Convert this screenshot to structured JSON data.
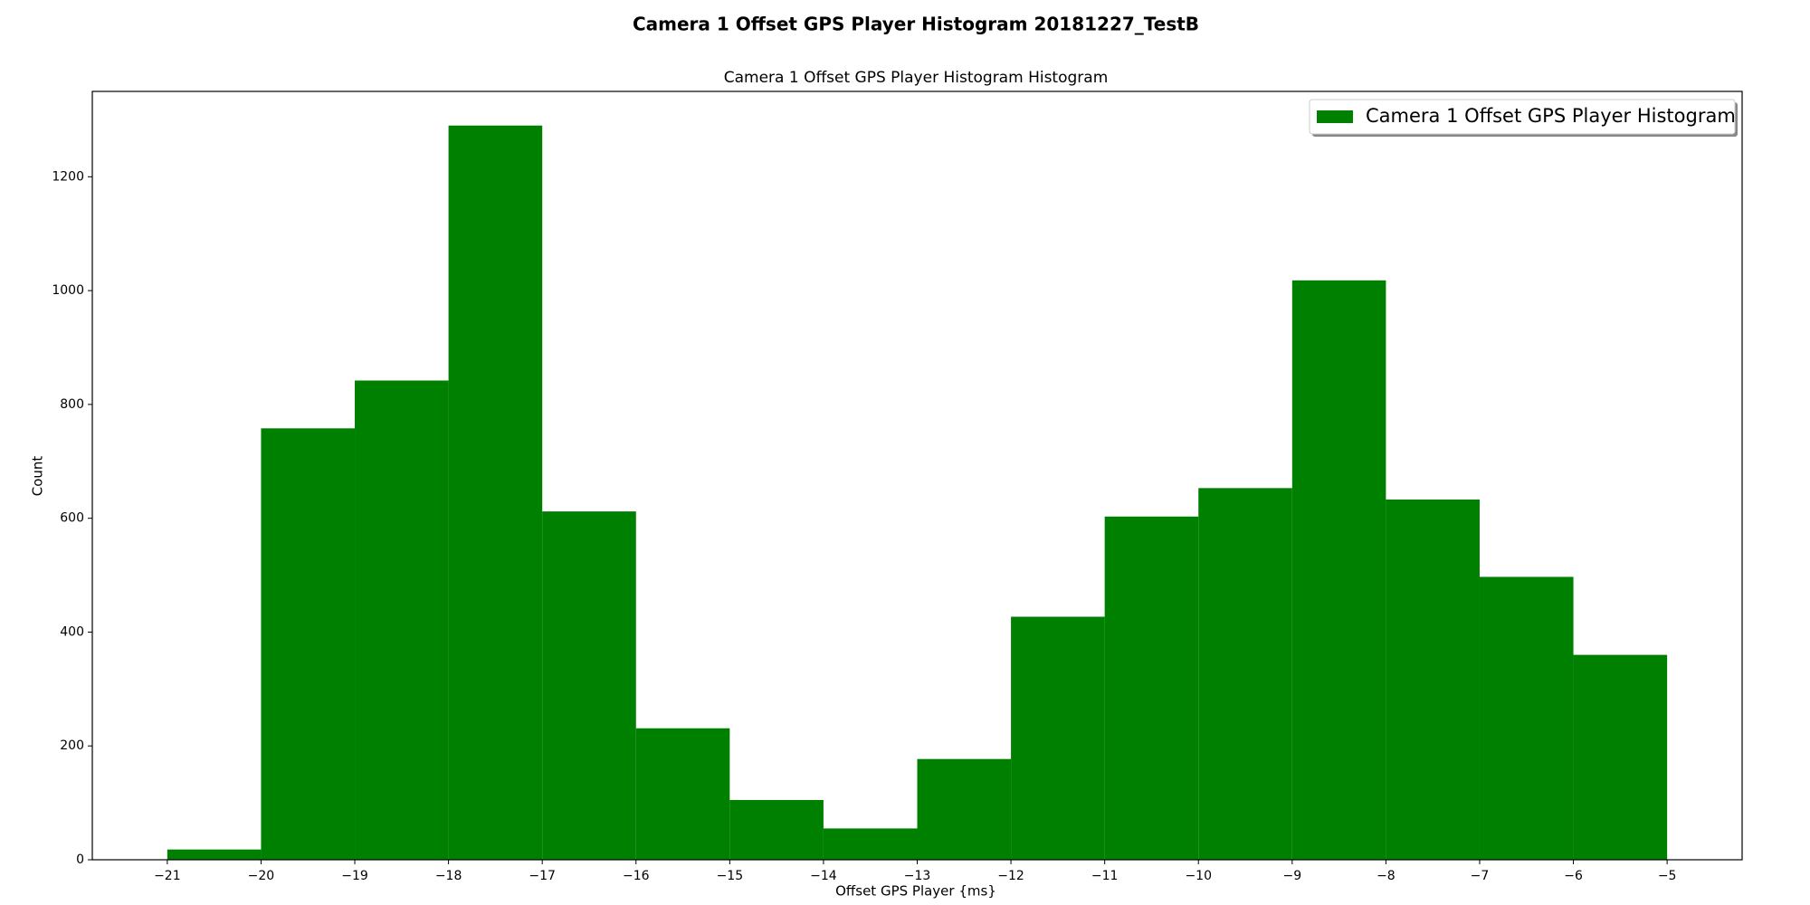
{
  "chart_data": {
    "type": "histogram",
    "title": "Camera 1 Offset GPS Player Histogram 20181227_TestB",
    "subtitle": "Camera 1 Offset GPS Player Histogram Histogram",
    "x_label": "Offset GPS Player {ms}",
    "y_label": "Count",
    "bins": [
      -21,
      -20,
      -19,
      -18,
      -17,
      -16,
      -15,
      -14,
      -13,
      -12,
      -11,
      -10,
      -9,
      -8,
      -7,
      -6,
      -5
    ],
    "series": [
      {
        "name": "Camera 1 Offset GPS Player Histogram",
        "color": "#008000",
        "values": [
          18,
          758,
          842,
          1290,
          612,
          231,
          105,
          55,
          177,
          427,
          603,
          653,
          1018,
          633,
          497,
          360
        ]
      }
    ],
    "xlim": [
      -21.8,
      -4.2
    ],
    "ylim": [
      0,
      1350
    ],
    "xticks": [
      {
        "value": -21,
        "label": "−21"
      },
      {
        "value": -20,
        "label": "−20"
      },
      {
        "value": -19,
        "label": "−19"
      },
      {
        "value": -18,
        "label": "−18"
      },
      {
        "value": -17,
        "label": "−17"
      },
      {
        "value": -16,
        "label": "−16"
      },
      {
        "value": -15,
        "label": "−15"
      },
      {
        "value": -14,
        "label": "−14"
      },
      {
        "value": -13,
        "label": "−13"
      },
      {
        "value": -12,
        "label": "−12"
      },
      {
        "value": -11,
        "label": "−11"
      },
      {
        "value": -10,
        "label": "−10"
      },
      {
        "value": -9,
        "label": "−9"
      },
      {
        "value": -8,
        "label": "−8"
      },
      {
        "value": -7,
        "label": "−7"
      },
      {
        "value": -6,
        "label": "−6"
      },
      {
        "value": -5,
        "label": "−5"
      }
    ],
    "yticks": [
      0,
      200,
      400,
      600,
      800,
      1000,
      1200
    ],
    "legend": "upper right"
  }
}
